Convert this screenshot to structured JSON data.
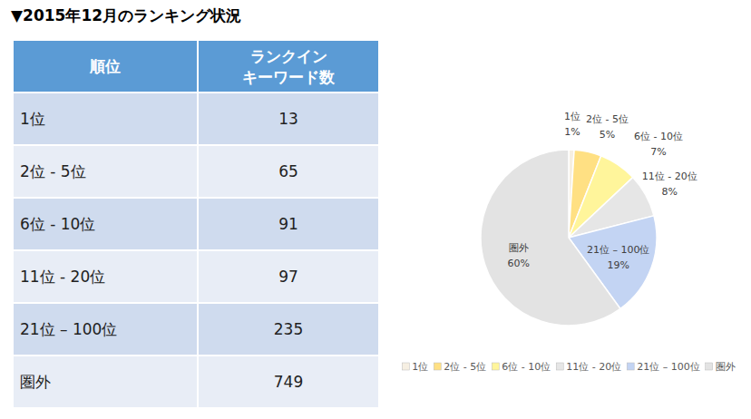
{
  "title": "▼2015年12月のランキング状況",
  "table": {
    "header": [
      [
        "順位"
      ],
      [
        "ランクイン",
        "キーワード数"
      ]
    ],
    "rows": [
      [
        "1位",
        13
      ],
      [
        "2位 - 5位",
        65
      ],
      [
        "6位 - 10位",
        91
      ],
      [
        "11位 - 20位",
        97
      ],
      [
        "21位 – 100位",
        235
      ],
      [
        "圏外",
        749
      ]
    ]
  },
  "chart_data": {
    "type": "pie",
    "categories": [
      "1位",
      "2位 - 5位",
      "6位 - 10位",
      "11位 - 20位",
      "21位 – 100位",
      "圏外"
    ],
    "values": [
      1,
      5,
      7,
      8,
      19,
      60
    ],
    "value_labels": [
      "1%",
      "5%",
      "7%",
      "8%",
      "19%",
      "60%"
    ],
    "colors": [
      "#f6efe2",
      "#ffe083",
      "#fff59b",
      "#e6e6e6",
      "#c3d4f3",
      "#e3e3e3"
    ],
    "data_labels": true,
    "legend": "bottom"
  }
}
